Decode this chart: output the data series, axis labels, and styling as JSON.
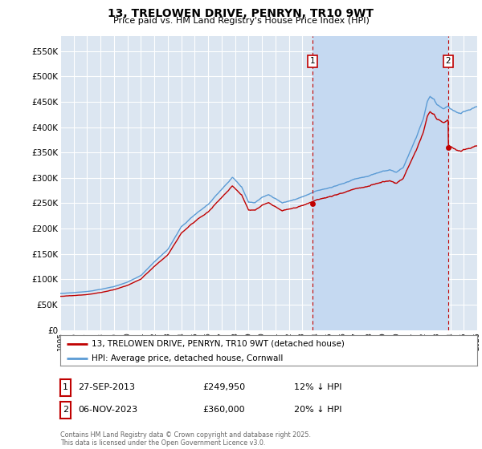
{
  "title": "13, TRELOWEN DRIVE, PENRYN, TR10 9WT",
  "subtitle": "Price paid vs. HM Land Registry's House Price Index (HPI)",
  "ylim": [
    0,
    580000
  ],
  "yticks": [
    0,
    50000,
    100000,
    150000,
    200000,
    250000,
    300000,
    350000,
    400000,
    450000,
    500000,
    550000
  ],
  "ytick_labels": [
    "£0",
    "£50K",
    "£100K",
    "£150K",
    "£200K",
    "£250K",
    "£300K",
    "£350K",
    "£400K",
    "£450K",
    "£500K",
    "£550K"
  ],
  "hpi_color": "#5b9bd5",
  "price_color": "#c00000",
  "vline_color": "#c00000",
  "background_color": "#ffffff",
  "plot_bg_color": "#dce6f1",
  "shade_color": "#c5d9f1",
  "grid_color": "#ffffff",
  "purchase1_date_num": 2013.74,
  "purchase1_price": 249950,
  "purchase1_label": "1",
  "purchase2_date_num": 2023.84,
  "purchase2_price": 360000,
  "purchase2_label": "2",
  "legend_entry1": "13, TRELOWEN DRIVE, PENRYN, TR10 9WT (detached house)",
  "legend_entry2": "HPI: Average price, detached house, Cornwall",
  "table_row1": [
    "1",
    "27-SEP-2013",
    "£249,950",
    "12% ↓ HPI"
  ],
  "table_row2": [
    "2",
    "06-NOV-2023",
    "£360,000",
    "20% ↓ HPI"
  ],
  "footer": "Contains HM Land Registry data © Crown copyright and database right 2025.\nThis data is licensed under the Open Government Licence v3.0.",
  "xmin": 1995.0,
  "xmax": 2026.0
}
